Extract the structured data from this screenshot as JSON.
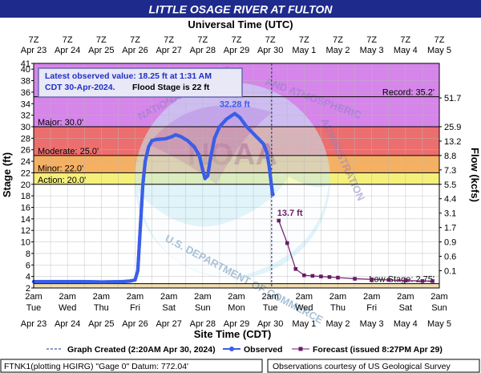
{
  "chart_data": {
    "type": "line",
    "title": "LITTLE OSAGE RIVER AT FULTON",
    "top_axis_title": "Universal Time (UTC)",
    "top_ticks": [
      {
        "t": "7Z",
        "d": "Apr 23"
      },
      {
        "t": "7Z",
        "d": "Apr 24"
      },
      {
        "t": "7Z",
        "d": "Apr 25"
      },
      {
        "t": "7Z",
        "d": "Apr 26"
      },
      {
        "t": "7Z",
        "d": "Apr 27"
      },
      {
        "t": "7Z",
        "d": "Apr 28"
      },
      {
        "t": "7Z",
        "d": "Apr 29"
      },
      {
        "t": "7Z",
        "d": "Apr 30"
      },
      {
        "t": "7Z",
        "d": "May 1"
      },
      {
        "t": "7Z",
        "d": "May 2"
      },
      {
        "t": "7Z",
        "d": "May 3"
      },
      {
        "t": "7Z",
        "d": "May 4"
      },
      {
        "t": "7Z",
        "d": "May 5"
      }
    ],
    "bottom_axis_title": "Site Time (CDT)",
    "bottom_ticks": [
      {
        "t": "2am",
        "w": "Tue",
        "d": "Apr 23"
      },
      {
        "t": "2am",
        "w": "Wed",
        "d": "Apr 24"
      },
      {
        "t": "2am",
        "w": "Thu",
        "d": "Apr 25"
      },
      {
        "t": "2am",
        "w": "Fri",
        "d": "Apr 26"
      },
      {
        "t": "2am",
        "w": "Sat",
        "d": "Apr 27"
      },
      {
        "t": "2am",
        "w": "Sun",
        "d": "Apr 28"
      },
      {
        "t": "2am",
        "w": "Mon",
        "d": "Apr 29"
      },
      {
        "t": "2am",
        "w": "Tue",
        "d": "Apr 30"
      },
      {
        "t": "2am",
        "w": "Wed",
        "d": "May 1"
      },
      {
        "t": "2am",
        "w": "Thu",
        "d": "May 2"
      },
      {
        "t": "2am",
        "w": "Fri",
        "d": "May 3"
      },
      {
        "t": "2am",
        "w": "Sat",
        "d": "May 4"
      },
      {
        "t": "2am",
        "w": "Sun",
        "d": "May 5"
      }
    ],
    "ylabel": "Stage (ft)",
    "y2label": "Flow (kcfs)",
    "ylim": [
      2,
      41
    ],
    "xlim_days": [
      0,
      12
    ],
    "yticks": [
      2,
      4,
      6,
      8,
      10,
      12,
      14,
      16,
      18,
      20,
      22,
      24,
      26,
      28,
      30,
      32,
      34,
      36,
      38,
      40,
      41
    ],
    "flow_ticks": [
      {
        "stage": 35,
        "label": "51.7"
      },
      {
        "stage": 30,
        "label": "25.9"
      },
      {
        "stage": 27.5,
        "label": "13.2"
      },
      {
        "stage": 25,
        "label": "8.8"
      },
      {
        "stage": 22.5,
        "label": "7.3"
      },
      {
        "stage": 20,
        "label": "5.5"
      },
      {
        "stage": 17.5,
        "label": "4.4"
      },
      {
        "stage": 15,
        "label": "3.1"
      },
      {
        "stage": 12.5,
        "label": "1.7"
      },
      {
        "stage": 10,
        "label": "0.9"
      },
      {
        "stage": 7.5,
        "label": "0.6"
      },
      {
        "stage": 5,
        "label": "0.1"
      }
    ],
    "bands": [
      {
        "from": 30,
        "to": 41,
        "color": "#d685ea"
      },
      {
        "from": 25,
        "to": 30,
        "color": "#ec6e6e"
      },
      {
        "from": 22,
        "to": 25,
        "color": "#f5b062"
      },
      {
        "from": 20,
        "to": 22,
        "color": "#f5f07a"
      }
    ],
    "thresholds": [
      {
        "stage": 30,
        "label": "Major: 30.0'",
        "side": "left"
      },
      {
        "stage": 25,
        "label": "Moderate: 25.0'",
        "side": "left"
      },
      {
        "stage": 22,
        "label": "Minor: 22.0'",
        "side": "left"
      },
      {
        "stage": 20,
        "label": "Action: 20.0'",
        "side": "left"
      },
      {
        "stage": 35.2,
        "label": "Record: 35.2'",
        "side": "right"
      },
      {
        "stage": 2.75,
        "label": "Low Stage: 2.75'",
        "side": "right"
      }
    ],
    "observed_name": "Observed",
    "observed_color": "#3b5ee8",
    "observed": [
      [
        0,
        3.1
      ],
      [
        0.5,
        3.1
      ],
      [
        1,
        3.1
      ],
      [
        1.5,
        3.1
      ],
      [
        2,
        3.05
      ],
      [
        2.6,
        3.1
      ],
      [
        2.85,
        3.2
      ],
      [
        3.0,
        3.4
      ],
      [
        3.08,
        5
      ],
      [
        3.13,
        10
      ],
      [
        3.18,
        15
      ],
      [
        3.23,
        20
      ],
      [
        3.3,
        24
      ],
      [
        3.4,
        26.5
      ],
      [
        3.5,
        27.6
      ],
      [
        3.65,
        27.8
      ],
      [
        3.9,
        27.9
      ],
      [
        4.1,
        28.3
      ],
      [
        4.2,
        28.6
      ],
      [
        4.35,
        28.3
      ],
      [
        4.55,
        27.6
      ],
      [
        4.75,
        26.5
      ],
      [
        4.9,
        25
      ],
      [
        5.0,
        22.5
      ],
      [
        5.07,
        21
      ],
      [
        5.15,
        21.5
      ],
      [
        5.23,
        24.5
      ],
      [
        5.35,
        28
      ],
      [
        5.5,
        30
      ],
      [
        5.7,
        31.3
      ],
      [
        5.85,
        31.9
      ],
      [
        5.95,
        32.28
      ],
      [
        6.1,
        31.6
      ],
      [
        6.3,
        30
      ],
      [
        6.55,
        28.5
      ],
      [
        6.8,
        27
      ],
      [
        6.9,
        25.5
      ],
      [
        6.97,
        23
      ],
      [
        7.03,
        20
      ],
      [
        7.07,
        18.25
      ]
    ],
    "forecast_name": "Forecast (issued 8:27PM Apr 29)",
    "forecast_color": "#6a1b6a",
    "forecast": [
      [
        7.25,
        13.7
      ],
      [
        7.5,
        9.8
      ],
      [
        7.75,
        5.3
      ],
      [
        8.0,
        4.2
      ],
      [
        8.25,
        4.1
      ],
      [
        8.5,
        4.0
      ],
      [
        8.75,
        3.9
      ],
      [
        9.0,
        3.8
      ],
      [
        9.5,
        3.6
      ],
      [
        10.0,
        3.5
      ],
      [
        10.5,
        3.4
      ],
      [
        11.0,
        3.3
      ],
      [
        11.5,
        3.2
      ],
      [
        11.8,
        3.2
      ]
    ],
    "peak_label": "32.28 ft",
    "peak_point": [
      5.95,
      32.28
    ],
    "forecast_label": "13.7 ft",
    "forecast_label_point": [
      7.25,
      13.7
    ],
    "graph_created_x": 7.04,
    "latest_box": {
      "line1": "Latest observed value: 18.25 ft at 1:31 AM",
      "line2": "CDT 30-Apr-2024.",
      "line3": "Flood Stage is 22 ft"
    },
    "legend": {
      "created": "Graph Created (2:20AM Apr 30, 2024)",
      "observed": "Observed",
      "forecast": "Forecast (issued 8:27PM Apr 29)"
    },
    "footer_left": "FTNK1(plotting HGIRG) \"Gage 0\" Datum: 772.04'",
    "footer_right": "Observations courtesy of US Geological Survey",
    "watermark_lines": [
      "NATIONAL OCEANIC",
      "AND ATMOSPHERIC",
      "ADMINISTRATION",
      "U.S. DEPARTMENT OF COMMERCE",
      "NOAA"
    ]
  }
}
